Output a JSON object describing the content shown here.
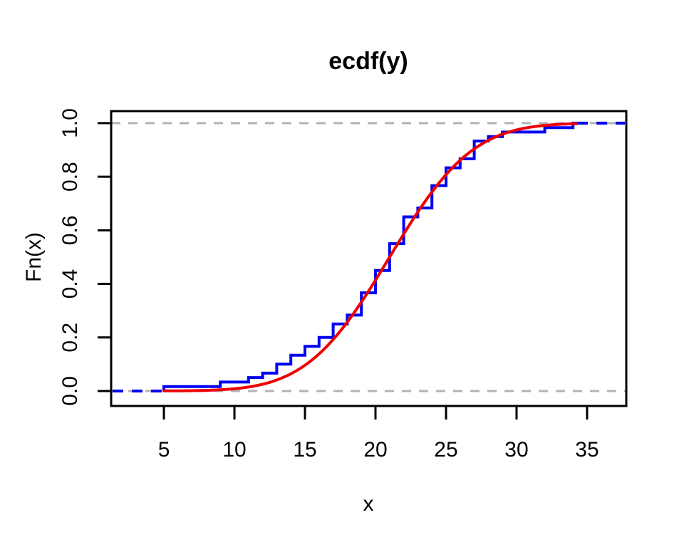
{
  "figure": {
    "background": "#ffffff"
  },
  "chart_data": {
    "type": "line",
    "subtype": "ecdf-step-with-cdf-overlay",
    "title": "ecdf(y)",
    "xlabel": "x",
    "ylabel": "Fn(x)",
    "x_ticks": [
      5,
      10,
      15,
      20,
      25,
      30,
      35
    ],
    "x_tick_labels": [
      "5",
      "10",
      "15",
      "20",
      "25",
      "30",
      "35"
    ],
    "y_ticks": [
      0.0,
      0.2,
      0.4,
      0.6,
      0.8,
      1.0
    ],
    "y_tick_labels": [
      "0.0",
      "0.2",
      "0.4",
      "0.6",
      "0.8",
      "1.0"
    ],
    "xlim": [
      1.26,
      37.78
    ],
    "ylim": [
      -0.056,
      1.045
    ],
    "grid": false,
    "legend": "none",
    "colors": {
      "ecdf": "#0000f2",
      "normal_curve": "#ee0000",
      "reference_dash": "#b3b3b3",
      "axis": "#000000"
    },
    "series": [
      {
        "name": "empirical-cdf-steps",
        "type": "step",
        "color": "#0000f2",
        "n": 60,
        "x": [
          5,
          9,
          11,
          12,
          13,
          14,
          15,
          16,
          17,
          18,
          19,
          20,
          21,
          22,
          23,
          24,
          25,
          26,
          27,
          28,
          29,
          32,
          34
        ],
        "counts": [
          1,
          1,
          1,
          1,
          2,
          2,
          2,
          2,
          3,
          2,
          5,
          5,
          6,
          6,
          2,
          5,
          4,
          2,
          4,
          1,
          1,
          1,
          1
        ],
        "F": [
          0.0167,
          0.0333,
          0.05,
          0.0667,
          0.1,
          0.1333,
          0.1667,
          0.2,
          0.25,
          0.2833,
          0.3667,
          0.45,
          0.55,
          0.65,
          0.6833,
          0.7667,
          0.8333,
          0.8667,
          0.9333,
          0.95,
          0.9667,
          0.9833,
          1.0
        ]
      },
      {
        "name": "fitted-normal-cdf",
        "type": "curve",
        "color": "#ee0000",
        "mean": 21,
        "sd": 4.6,
        "x_range": [
          5.0,
          34.3
        ]
      }
    ],
    "reference_lines": [
      {
        "y": 0.0,
        "style": "dashed",
        "color": "#b3b3b3"
      },
      {
        "y": 1.0,
        "style": "dashed",
        "color": "#b3b3b3"
      }
    ],
    "step_extensions": [
      {
        "side": "left",
        "y": 0.0,
        "style": "dashed",
        "color": "#0000f2"
      },
      {
        "side": "right",
        "y": 1.0,
        "style": "dashed",
        "color": "#0000f2"
      }
    ]
  }
}
